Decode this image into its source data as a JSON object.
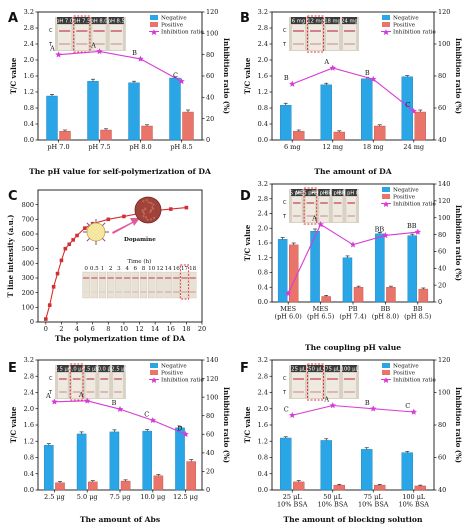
{
  "panel_letters": [
    "A",
    "B",
    "C",
    "D",
    "E",
    "F"
  ],
  "legend": {
    "negative": "Negative",
    "positive": "Positive",
    "inhibition": "Inhibition ratio"
  },
  "colors": {
    "negative": "#2aa6e6",
    "positive": "#e8746a",
    "inhibition": "#d63bd8",
    "strip_label_bg": "#3a3a3a",
    "dashed_highlight": "#e03030"
  },
  "chart_data": [
    {
      "panel": "A",
      "type": "bar",
      "categories": [
        "pH 7.0",
        "pH 7.5",
        "pH 8.0",
        "pH 8.5"
      ],
      "strip_labels": [
        "pH 7.0",
        "pH 7.5",
        "pH 8.0",
        "pH 8.5"
      ],
      "highlight_index": 1,
      "series": [
        {
          "name": "Negative",
          "values": [
            1.1,
            1.47,
            1.43,
            1.55
          ],
          "errors": [
            0.04,
            0.05,
            0.04,
            0.03
          ]
        },
        {
          "name": "Positive",
          "values": [
            0.22,
            0.25,
            0.35,
            0.7
          ],
          "errors": [
            0.03,
            0.03,
            0.03,
            0.05
          ]
        }
      ],
      "ratio": [
        80,
        83,
        76,
        55
      ],
      "sig_labels": [
        "A",
        "A",
        "B",
        "C"
      ],
      "xlabel": "The pH value for self-polymerization of DA",
      "ylabel": "T/C value",
      "y2label": "Inhibition ratio (%)",
      "ylim": [
        0,
        3.2
      ],
      "yticks": [
        "0.0",
        "0.4",
        "0.8",
        "1.2",
        "1.6",
        "2.0",
        "2.4",
        "2.8",
        "3.2"
      ],
      "y2lim": [
        0,
        120
      ],
      "y2ticks": [
        "0",
        "20",
        "40",
        "60",
        "80",
        "100",
        "120"
      ]
    },
    {
      "panel": "B",
      "type": "bar",
      "categories": [
        "6 mg",
        "12 mg",
        "18 mg",
        "24 mg"
      ],
      "strip_labels": [
        "6 mg",
        "12 mg",
        "18 mg",
        "24 mg"
      ],
      "highlight_index": 1,
      "series": [
        {
          "name": "Negative",
          "values": [
            0.87,
            1.38,
            1.53,
            1.58
          ],
          "errors": [
            0.05,
            0.04,
            0.04,
            0.03
          ]
        },
        {
          "name": "Positive",
          "values": [
            0.22,
            0.2,
            0.35,
            0.7
          ],
          "errors": [
            0.03,
            0.03,
            0.03,
            0.05
          ]
        }
      ],
      "ratio": [
        75,
        85,
        78,
        58
      ],
      "sig_labels": [
        "B",
        "A",
        "B",
        "C"
      ],
      "xlabel": "The amount of DA",
      "ylabel": "T/C value",
      "y2label": "Inhibition ratio (%)",
      "ylim": [
        0,
        3.2
      ],
      "yticks": [
        "0.0",
        "0.4",
        "0.8",
        "1.2",
        "1.6",
        "2.0",
        "2.4",
        "2.8",
        "3.2"
      ],
      "y2lim": [
        40,
        120
      ],
      "y2ticks": [
        "40",
        "60",
        "80",
        "100",
        "120"
      ]
    },
    {
      "panel": "C",
      "type": "line",
      "x": [
        0,
        0.5,
        1,
        1.5,
        2,
        2.5,
        3,
        3.5,
        4,
        5,
        6,
        8,
        10,
        12,
        14,
        16,
        18
      ],
      "y": [
        20,
        115,
        240,
        330,
        420,
        500,
        530,
        560,
        590,
        640,
        670,
        700,
        720,
        740,
        760,
        770,
        780
      ],
      "xlabel": "The polymerization time of DA",
      "ylabel": "T line intensity (a.u.)",
      "xlim": [
        -1,
        20
      ],
      "xticks": [
        "0",
        "2",
        "4",
        "6",
        "8",
        "10",
        "12",
        "14",
        "16",
        "18",
        "20"
      ],
      "ylim": [
        0,
        900
      ],
      "yticks": [
        "0",
        "100",
        "200",
        "300",
        "400",
        "500",
        "600",
        "700",
        "800"
      ],
      "inset_label": "Dopamine",
      "inset_time_label": "Time (h)",
      "inset_strip_labels": [
        "0",
        "0.5",
        "1",
        "2",
        "3",
        "4",
        "6",
        "8",
        "10",
        "12",
        "14",
        "16",
        "17",
        "18"
      ],
      "inset_highlight_index": 12
    },
    {
      "panel": "D",
      "type": "bar",
      "categories": [
        "MES\n(pH 6.0)",
        "MES\n(pH 6.5)",
        "PB\n(pH 7.4)",
        "BB\n(pH 8.0)",
        "BB\n(pH 8.5)"
      ],
      "strip_labels": [
        "MES pH 6.0",
        "MES pH 6.5",
        "PB pH 7.4",
        "BB pH 8.0",
        "BB pH 8.5"
      ],
      "highlight_index": 1,
      "series": [
        {
          "name": "Negative",
          "values": [
            1.7,
            1.92,
            1.2,
            1.85,
            1.8
          ],
          "errors": [
            0.05,
            0.06,
            0.05,
            0.04,
            0.04
          ]
        },
        {
          "name": "Positive",
          "values": [
            1.55,
            0.15,
            0.4,
            0.4,
            0.35
          ],
          "errors": [
            0.05,
            0.03,
            0.03,
            0.03,
            0.03
          ]
        }
      ],
      "ratio": [
        10,
        92,
        68,
        79,
        83
      ],
      "sig_labels": [
        "",
        "A",
        "",
        "BB",
        "BB"
      ],
      "xlabel": "The coupling pH value",
      "ylabel": "T/C value",
      "y2label": "Inhibition ratio (%)",
      "ylim": [
        0,
        3.2
      ],
      "yticks": [
        "0.0",
        "0.4",
        "0.8",
        "1.2",
        "1.6",
        "2.0",
        "2.4",
        "2.8",
        "3.2"
      ],
      "y2lim": [
        0,
        140
      ],
      "y2ticks": [
        "0",
        "20",
        "40",
        "60",
        "80",
        "100",
        "120",
        "140"
      ]
    },
    {
      "panel": "E",
      "type": "bar",
      "categories": [
        "2.5 μg",
        "5.0 μg",
        "7.5 μg",
        "10.0 μg",
        "12.5 μg"
      ],
      "strip_labels": [
        "2.5 μg",
        "5.0 μg",
        "7.5 μg",
        "10.0 μg",
        "12.5 μg"
      ],
      "highlight_index": 1,
      "series": [
        {
          "name": "Negative",
          "values": [
            1.1,
            1.38,
            1.43,
            1.45,
            1.53
          ],
          "errors": [
            0.04,
            0.05,
            0.05,
            0.04,
            0.03
          ]
        },
        {
          "name": "Positive",
          "values": [
            0.18,
            0.2,
            0.22,
            0.35,
            0.7
          ],
          "errors": [
            0.03,
            0.03,
            0.03,
            0.03,
            0.05
          ]
        }
      ],
      "ratio": [
        95,
        96,
        87,
        75,
        60
      ],
      "sig_labels": [
        "A",
        "A",
        "B",
        "C",
        "D"
      ],
      "xlabel": "The amount of Abs",
      "ylabel": "T/C value",
      "y2label": "Inhibition ratio (%)",
      "ylim": [
        0,
        3.2
      ],
      "yticks": [
        "0.0",
        "0.4",
        "0.8",
        "1.2",
        "1.6",
        "2.0",
        "2.4",
        "2.8",
        "3.2"
      ],
      "y2lim": [
        0,
        140
      ],
      "y2ticks": [
        "0",
        "20",
        "40",
        "60",
        "80",
        "100",
        "120",
        "140"
      ]
    },
    {
      "panel": "F",
      "type": "bar",
      "categories": [
        "25 μL\n10% BSA",
        "50 μL\n10% BSA",
        "75 μL\n10% BSA",
        "100 μL\n10% BSA"
      ],
      "strip_labels": [
        "25 μL",
        "50 μL",
        "75 μL",
        "100 μL"
      ],
      "highlight_index": 1,
      "series": [
        {
          "name": "Negative",
          "values": [
            1.28,
            1.22,
            1.0,
            0.92
          ],
          "errors": [
            0.03,
            0.04,
            0.04,
            0.03
          ]
        },
        {
          "name": "Positive",
          "values": [
            0.2,
            0.12,
            0.12,
            0.1
          ],
          "errors": [
            0.03,
            0.02,
            0.02,
            0.02
          ]
        }
      ],
      "ratio": [
        86,
        92,
        90,
        88
      ],
      "sig_labels": [
        "C",
        "A",
        "B",
        "C"
      ],
      "xlabel": "The amount of blocking solution",
      "ylabel": "T/C value",
      "y2label": "Inhibition ratio (%)",
      "ylim": [
        0,
        3.2
      ],
      "yticks": [
        "0.0",
        "0.4",
        "0.8",
        "1.2",
        "1.6",
        "2.0",
        "2.4",
        "2.8",
        "3.2"
      ],
      "y2lim": [
        40,
        120
      ],
      "y2ticks": [
        "40",
        "60",
        "80",
        "100",
        "120"
      ]
    }
  ]
}
